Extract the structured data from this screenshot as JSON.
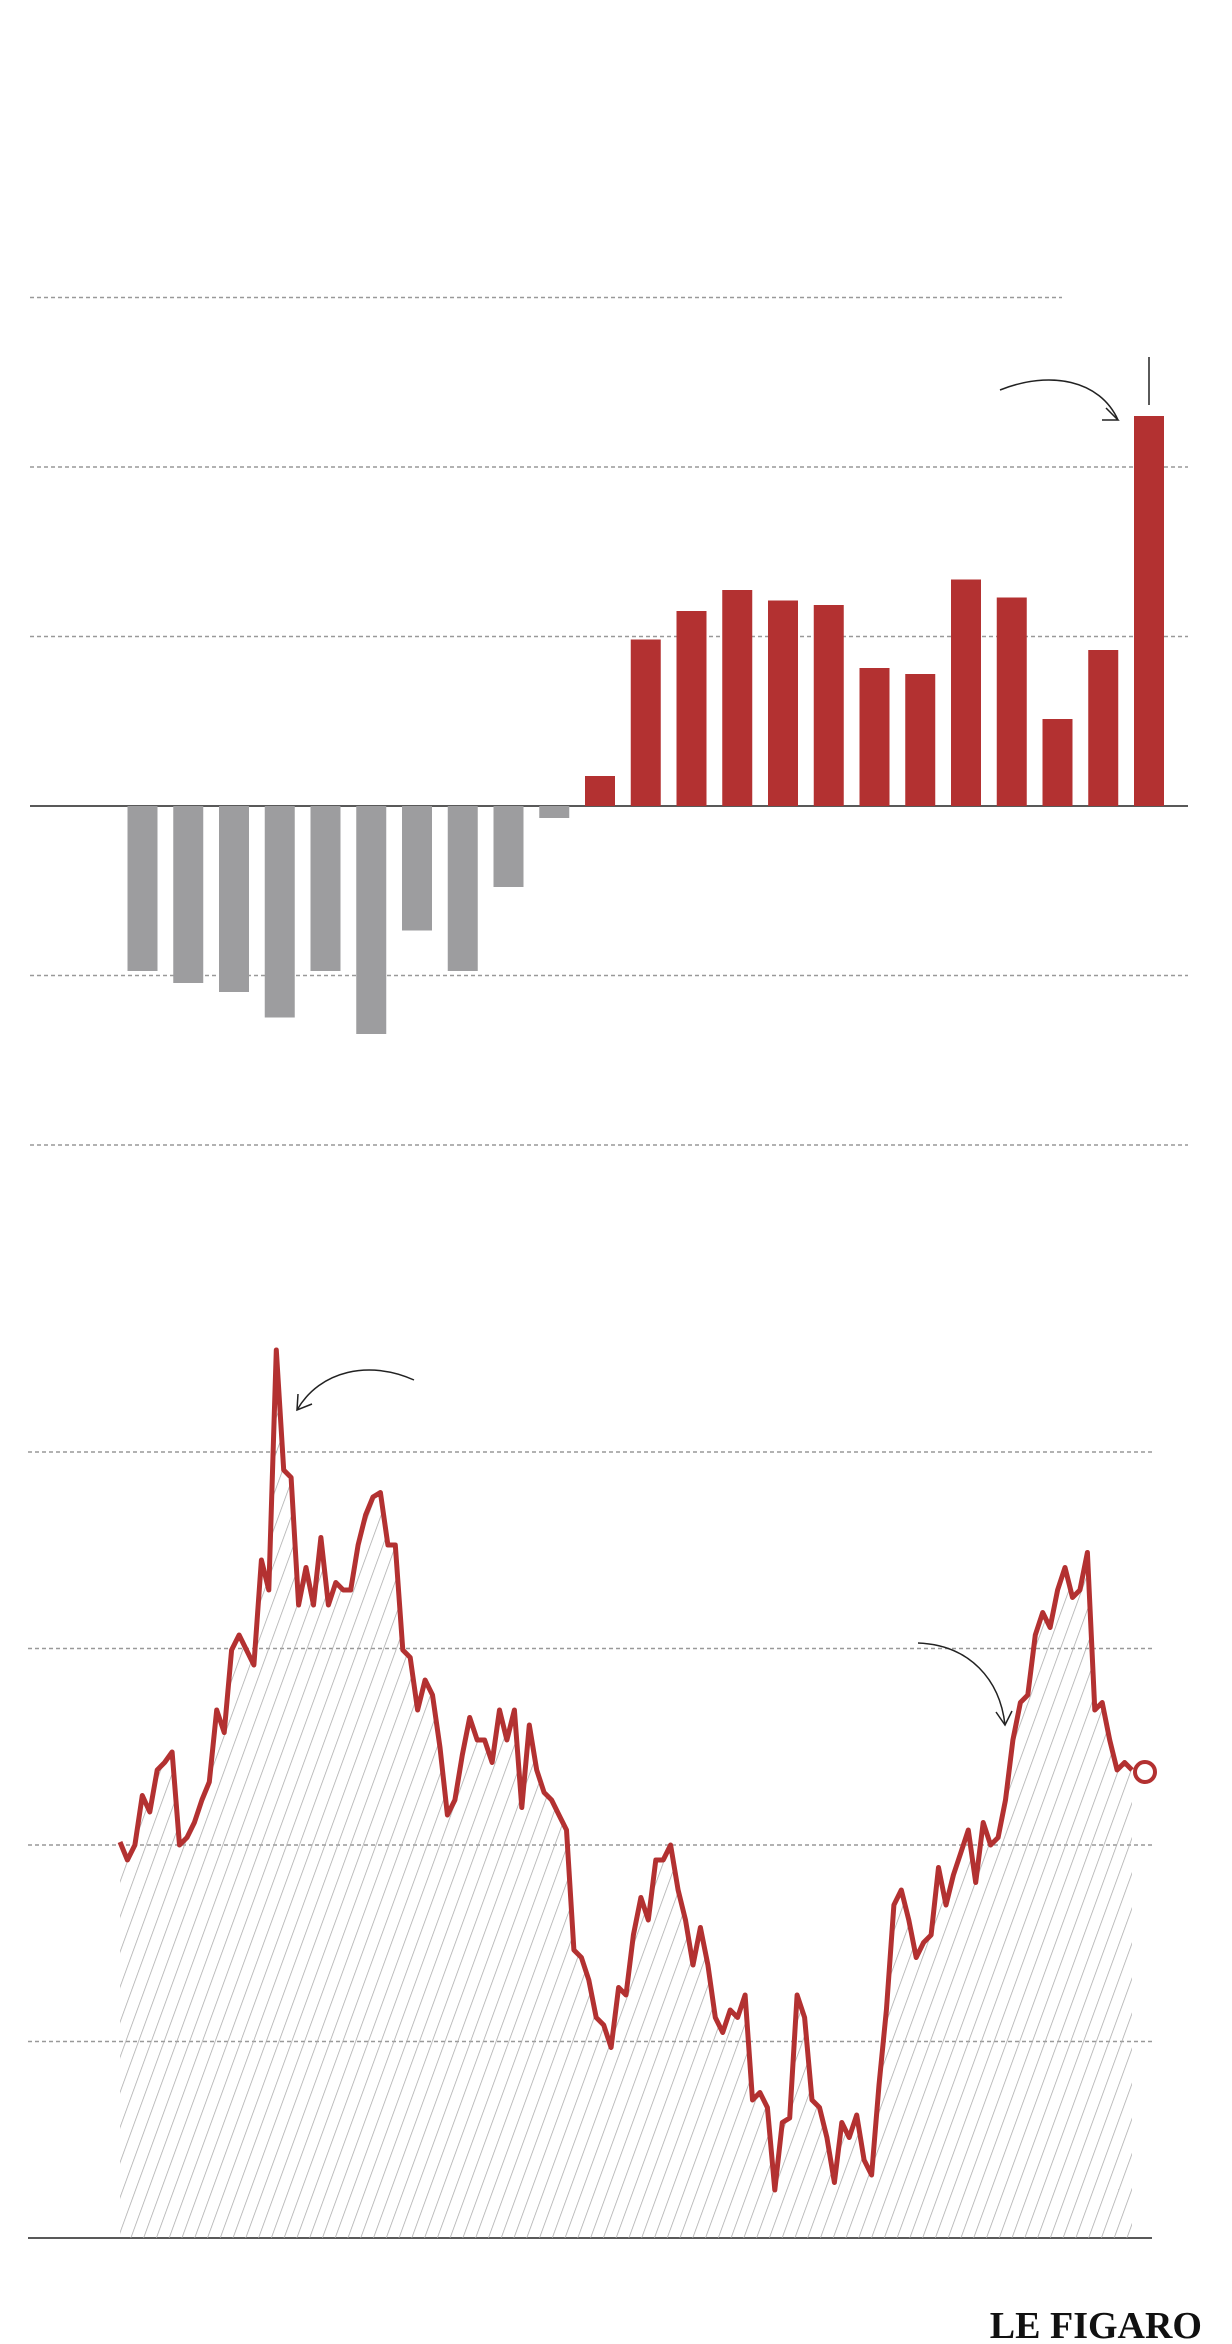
{
  "charts": [
    {
      "chart_data": {
        "type": "bar",
        "categories": [
          null,
          null,
          null,
          null,
          null,
          null,
          null,
          null,
          null,
          null,
          null,
          null,
          null,
          null,
          null,
          null,
          null,
          null,
          null,
          null,
          null,
          null,
          null
        ],
        "values": [
          -110,
          -118,
          -124,
          -141,
          -110,
          -152,
          -83,
          -110,
          -54,
          -8,
          20,
          111,
          130,
          144,
          137,
          134,
          92,
          88,
          151,
          139,
          58,
          104,
          260
        ],
        "color": "#b33131",
        "negative_color": "#9d9d9f",
        "ylim": [
          -260,
          370
        ],
        "yticks": [
          -226,
          -113,
          0,
          113,
          226,
          339
        ],
        "grid": true
      }
    },
    {
      "chart_data": {
        "type": "area",
        "values": [
          264,
          252,
          262,
          295,
          284,
          312,
          317,
          324,
          262,
          267,
          277,
          292,
          304,
          352,
          337,
          392,
          402,
          392,
          382,
          452,
          432,
          592,
          512,
          507,
          422,
          447,
          422,
          467,
          422,
          437,
          432,
          432,
          462,
          482,
          494,
          497,
          462,
          462,
          392,
          387,
          352,
          372,
          362,
          327,
          282,
          292,
          322,
          347,
          332,
          332,
          317,
          352,
          332,
          352,
          287,
          342,
          312,
          297,
          292,
          282,
          272,
          192,
          187,
          172,
          147,
          142,
          127,
          167,
          162,
          202,
          227,
          212,
          252,
          252,
          262,
          232,
          212,
          182,
          207,
          182,
          147,
          137,
          152,
          147,
          162,
          92,
          97,
          87,
          32,
          77,
          80,
          162,
          147,
          92,
          87,
          67,
          37,
          77,
          67,
          82,
          52,
          42,
          102,
          152,
          222,
          232,
          212,
          187,
          197,
          202,
          247,
          222,
          242,
          257,
          272,
          237,
          277,
          262,
          267,
          292,
          332,
          357,
          362,
          402,
          417,
          407,
          432,
          447,
          427,
          432,
          457,
          352,
          357,
          332,
          312,
          317,
          312
        ],
        "color": "#b33131",
        "ylim": [
          0,
          600
        ],
        "yticks": [
          0,
          131,
          262,
          393,
          524
        ],
        "grid": true
      }
    }
  ],
  "logo": "LE FIGARO"
}
